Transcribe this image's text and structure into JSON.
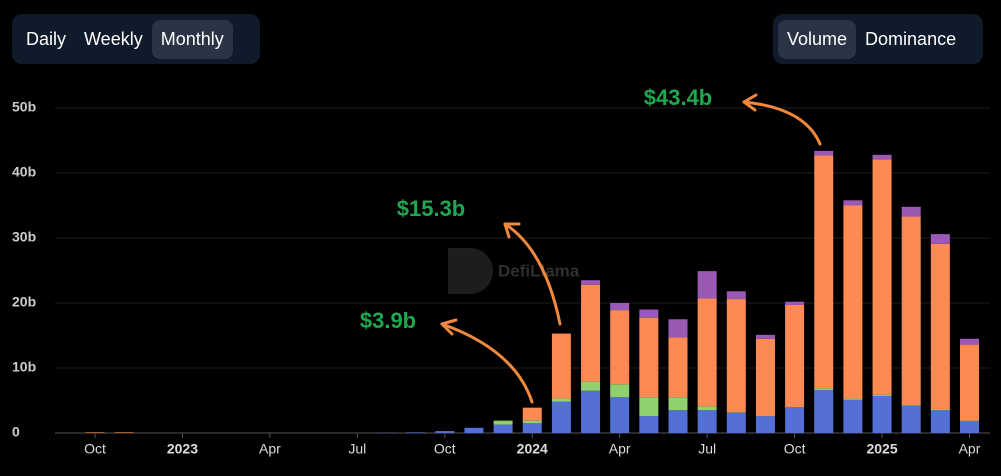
{
  "toolbar": {
    "range": [
      "Daily",
      "Weekly",
      "Monthly"
    ],
    "metric": [
      "Volume",
      "Dominance"
    ]
  },
  "chart_data": {
    "type": "stacked-bar",
    "watermark": "DefiLlama",
    "annotations": [
      "$43.4b",
      "$15.3b",
      "$3.9b"
    ],
    "categories": [
      "Oct",
      null,
      null,
      "2023",
      null,
      null,
      "Apr",
      null,
      null,
      "Jul",
      null,
      null,
      "Oct",
      null,
      null,
      "2024",
      null,
      null,
      "Apr",
      null,
      null,
      "Jul",
      null,
      null,
      "Oct",
      null,
      null,
      "2025",
      null,
      null,
      "Apr"
    ],
    "series": [
      {
        "color": "#5470d6",
        "values": [
          0,
          0,
          0,
          0,
          0,
          0,
          0,
          0,
          0,
          0,
          0.05,
          0.1,
          0.3,
          0.8,
          1.3,
          1.5,
          4.8,
          6.5,
          5.5,
          2.6,
          3.5,
          3.5,
          3.1,
          2.6,
          4.0,
          6.6,
          5.1,
          5.7,
          4.2,
          3.5,
          1.8
        ]
      },
      {
        "color": "#8fd16e",
        "values": [
          0,
          0,
          0,
          0,
          0,
          0,
          0,
          0,
          0,
          0,
          0,
          0,
          0,
          0,
          0.6,
          0.4,
          0.5,
          1.4,
          2.0,
          2.9,
          2.0,
          0.6,
          0.1,
          0,
          0,
          0.3,
          0.2,
          0.2,
          0.1,
          0.2,
          0.1
        ]
      },
      {
        "color": "#fd8a52",
        "values": [
          0.1,
          0.1,
          0,
          0,
          0,
          0,
          0,
          0,
          0,
          0,
          0,
          0,
          0,
          0,
          0,
          2.0,
          10.0,
          14.9,
          11.4,
          12.2,
          9.2,
          16.6,
          17.4,
          11.9,
          15.7,
          35.8,
          29.7,
          36.2,
          29.0,
          25.4,
          11.7
        ]
      },
      {
        "color": "#9b59b6",
        "values": [
          0,
          0,
          0,
          0,
          0,
          0,
          0,
          0,
          0,
          0,
          0,
          0,
          0,
          0,
          0,
          0,
          0,
          0.7,
          1.1,
          1.3,
          2.8,
          4.2,
          1.2,
          0.6,
          0.5,
          0.7,
          0.8,
          0.7,
          1.5,
          1.5,
          0.9
        ]
      }
    ],
    "ylim": [
      0,
      50
    ],
    "yticks": [
      0,
      {
        "value": 10,
        "label": "10b"
      },
      {
        "value": 20,
        "label": "20b"
      },
      {
        "value": 30,
        "label": "30b"
      },
      {
        "value": 40,
        "label": "40b"
      },
      {
        "value": 50,
        "label": "50b"
      }
    ],
    "grid": true
  }
}
